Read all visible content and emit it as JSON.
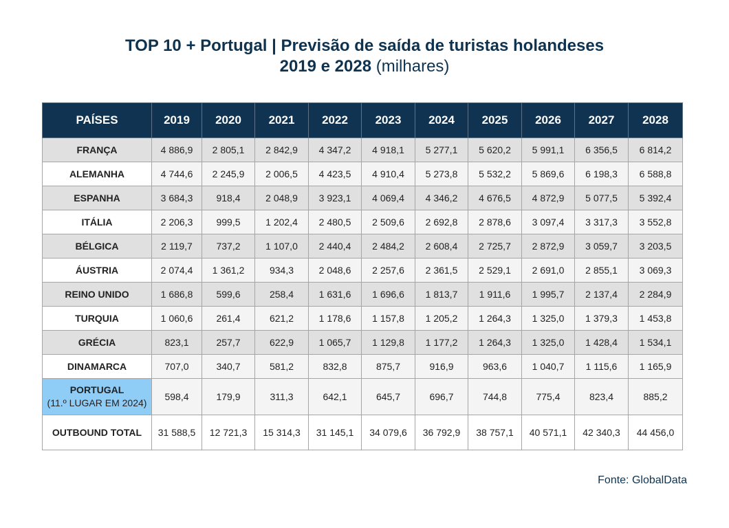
{
  "title": {
    "line1": "TOP 10 + Portugal | Previsão de saída de turistas holandeses",
    "line2_bold": "2019 e 2028",
    "line2_rest": " (milhares)"
  },
  "chart_data": {
    "type": "table",
    "header": [
      "PAÍSES",
      "2019",
      "2020",
      "2021",
      "2022",
      "2023",
      "2024",
      "2025",
      "2026",
      "2027",
      "2028"
    ],
    "rows": [
      {
        "country": "FRANÇA",
        "values": [
          "4 886,9",
          "2 805,1",
          "2 842,9",
          "4 347,2",
          "4 918,1",
          "5 277,1",
          "5 620,2",
          "5 991,1",
          "6 356,5",
          "6 814,2"
        ]
      },
      {
        "country": "ALEMANHA",
        "values": [
          "4 744,6",
          "2 245,9",
          "2 006,5",
          "4 423,5",
          "4 910,4",
          "5 273,8",
          "5 532,2",
          "5 869,6",
          "6 198,3",
          "6 588,8"
        ]
      },
      {
        "country": "ESPANHA",
        "values": [
          "3 684,3",
          "918,4",
          "2 048,9",
          "3 923,1",
          "4 069,4",
          "4 346,2",
          "4 676,5",
          "4 872,9",
          "5 077,5",
          "5 392,4"
        ]
      },
      {
        "country": "ITÁLIA",
        "values": [
          "2 206,3",
          "999,5",
          "1 202,4",
          "2 480,5",
          "2 509,6",
          "2 692,8",
          "2 878,6",
          "3 097,4",
          "3 317,3",
          "3 552,8"
        ]
      },
      {
        "country": "BÉLGICA",
        "values": [
          "2 119,7",
          "737,2",
          "1 107,0",
          "2 440,4",
          "2 484,2",
          "2 608,4",
          "2 725,7",
          "2 872,9",
          "3 059,7",
          "3 203,5"
        ]
      },
      {
        "country": "ÁUSTRIA",
        "values": [
          "2 074,4",
          "1 361,2",
          "934,3",
          "2 048,6",
          "2 257,6",
          "2 361,5",
          "2 529,1",
          "2 691,0",
          "2 855,1",
          "3 069,3"
        ]
      },
      {
        "country": "REINO UNIDO",
        "values": [
          "1 686,8",
          "599,6",
          "258,4",
          "1 631,6",
          "1 696,6",
          "1 813,7",
          "1 911,6",
          "1 995,7",
          "2 137,4",
          "2 284,9"
        ]
      },
      {
        "country": "TURQUIA",
        "values": [
          "1 060,6",
          "261,4",
          "621,2",
          "1 178,6",
          "1 157,8",
          "1 205,2",
          "1 264,3",
          "1 325,0",
          "1 379,3",
          "1 453,8"
        ]
      },
      {
        "country": "GRÉCIA",
        "values": [
          "823,1",
          "257,7",
          "622,9",
          "1 065,7",
          "1 129,8",
          "1 177,2",
          "1 264,3",
          "1 325,0",
          "1 428,4",
          "1 534,1"
        ]
      },
      {
        "country": "DINAMARCA",
        "values": [
          "707,0",
          "340,7",
          "581,2",
          "832,8",
          "875,7",
          "916,9",
          "963,6",
          "1 040,7",
          "1 115,6",
          "1 165,9"
        ]
      }
    ],
    "portugal": {
      "country": "PORTUGAL",
      "note": "(11.º LUGAR EM 2024)",
      "values": [
        "598,4",
        "179,9",
        "311,3",
        "642,1",
        "645,7",
        "696,7",
        "744,8",
        "775,4",
        "823,4",
        "885,2"
      ]
    },
    "total": {
      "country": "OUTBOUND TOTAL",
      "values": [
        "31 588,5",
        "12 721,3",
        "15 314,3",
        "31 145,1",
        "34 079,6",
        "36 792,9",
        "38 757,1",
        "40 571,1",
        "42 340,3",
        "44 456,0"
      ]
    }
  },
  "source": "Fonte: GlobalData",
  "colors": {
    "header_bg": "#0f3350",
    "portugal_highlight": "#8fcdf7",
    "title": "#0d3350"
  }
}
